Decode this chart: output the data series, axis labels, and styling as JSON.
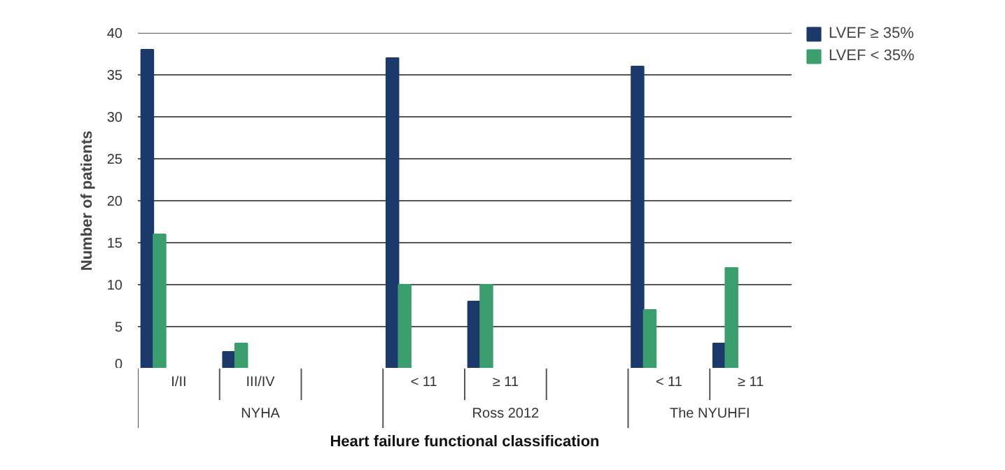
{
  "chart_data": {
    "type": "bar",
    "xlabel": "Heart failure functional classification",
    "ylabel": "Number of patients",
    "categories": [
      "I/II",
      "III/IV",
      null,
      "< 11",
      "≥ 11",
      null,
      "< 11",
      "≥ 11"
    ],
    "annotations": [
      "NYHA",
      "Ross 2012",
      "The NYUHFI"
    ],
    "series": [
      {
        "name": "LVEF ≥ 35%",
        "color": "#1b3a6b",
        "values": [
          38,
          2,
          null,
          37,
          8,
          null,
          36,
          3
        ]
      },
      {
        "name": "LVEF < 35%",
        "color": "#3a9e6e",
        "values": [
          16,
          3,
          null,
          10,
          10,
          null,
          7,
          12
        ]
      }
    ],
    "ylim": [
      0,
      40
    ],
    "yticks": [
      0,
      5,
      10,
      15,
      20,
      25,
      30,
      35,
      40
    ],
    "grid": "y",
    "legend": "top right"
  }
}
